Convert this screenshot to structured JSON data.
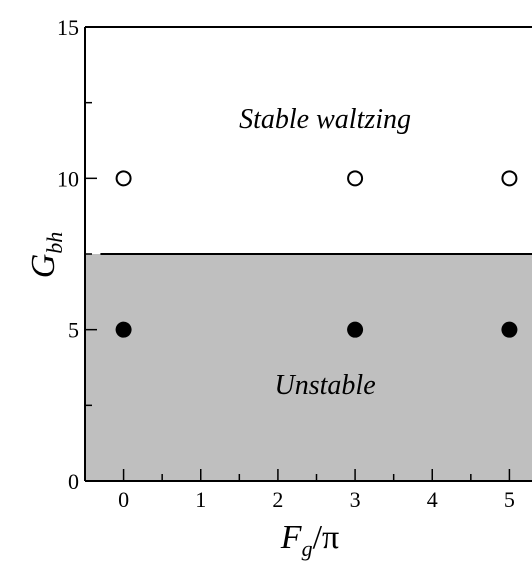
{
  "chart_data": {
    "type": "scatter",
    "title": "",
    "xlabel": {
      "main": "F",
      "sub": "g",
      "suffix": "/π"
    },
    "ylabel": {
      "main": "G",
      "sub": "bh"
    },
    "xlim": [
      -0.5,
      5.5
    ],
    "ylim": [
      0,
      15
    ],
    "x_ticks": [
      0,
      1,
      2,
      3,
      4,
      5
    ],
    "y_ticks": [
      0,
      5,
      10,
      15
    ],
    "y_minor_ticks": [
      2.5,
      7.5,
      12.5
    ],
    "x_minor_ticks": [
      0.5,
      1.5,
      2.5,
      3.5,
      4.5
    ],
    "boundary": {
      "y": 7.5,
      "x_range": [
        -0.3,
        5.3
      ]
    },
    "regions": [
      {
        "name": "stable",
        "label": "Stable waltzing",
        "label_x": 3.0,
        "label_y": 12,
        "fill": "#ffffff",
        "y_range": [
          7.5,
          15
        ]
      },
      {
        "name": "unstable",
        "label": "Unstable",
        "label_x": 3.0,
        "label_y": 3.2,
        "fill": "#bfbfbf",
        "y_range": [
          0,
          7.5
        ]
      }
    ],
    "series": [
      {
        "marker": "open-circle",
        "points": [
          {
            "x": 0,
            "y": 10
          },
          {
            "x": 3,
            "y": 10
          },
          {
            "x": 5,
            "y": 10
          }
        ]
      },
      {
        "marker": "filled-circle",
        "points": [
          {
            "x": 0,
            "y": 5
          },
          {
            "x": 3,
            "y": 5
          },
          {
            "x": 5,
            "y": 5
          }
        ]
      }
    ],
    "grid": false
  }
}
